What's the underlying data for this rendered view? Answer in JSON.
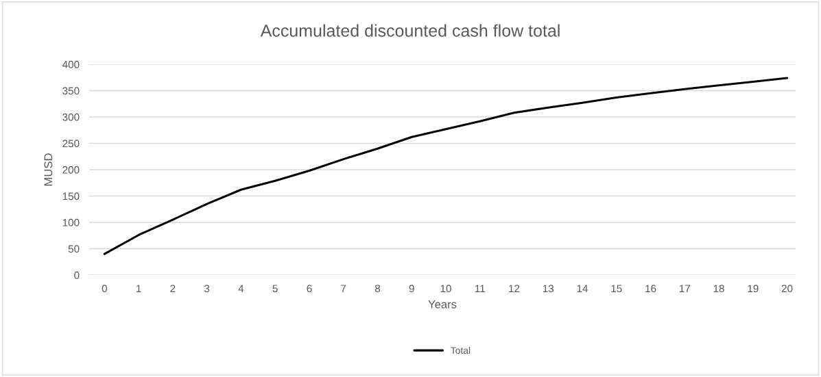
{
  "chart_data": {
    "type": "line",
    "title": "Accumulated discounted cash flow total",
    "xlabel": "Years",
    "ylabel": "MUSD",
    "categories": [
      "0",
      "1",
      "2",
      "3",
      "4",
      "5",
      "6",
      "7",
      "8",
      "9",
      "10",
      "11",
      "12",
      "13",
      "14",
      "15",
      "16",
      "17",
      "18",
      "19",
      "20"
    ],
    "series": [
      {
        "name": "Total",
        "color": "#000000",
        "values": [
          40,
          76,
          105,
          135,
          162,
          179,
          198,
          220,
          240,
          262,
          277,
          292,
          308,
          318,
          327,
          337,
          345,
          353,
          360,
          367,
          374
        ]
      }
    ],
    "ylim": [
      0,
      400
    ],
    "yticks": [
      0,
      50,
      100,
      150,
      200,
      250,
      300,
      350,
      400
    ],
    "grid": "y",
    "legend": "bottom",
    "marker": "none",
    "line_style": "solid"
  }
}
